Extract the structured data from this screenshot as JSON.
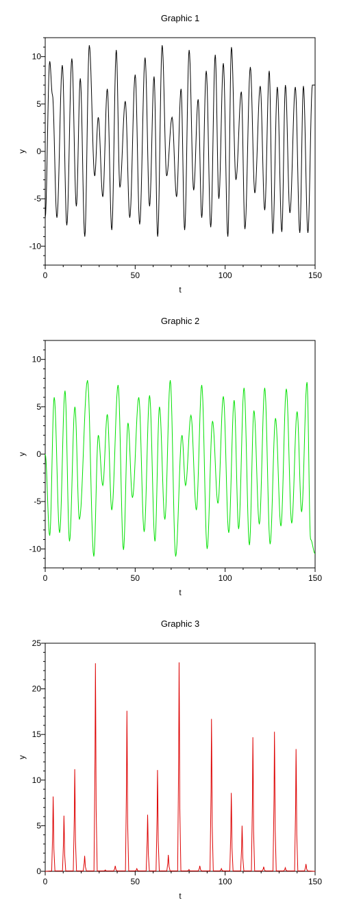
{
  "chart_data": [
    {
      "type": "line",
      "title": "Graphic 1",
      "xlabel": "t",
      "ylabel": "y",
      "xlim": [
        0,
        150
      ],
      "ylim": [
        -12,
        12
      ],
      "xticks": [
        0,
        50,
        100,
        150
      ],
      "yticks": [
        -10,
        -5,
        0,
        5,
        10
      ],
      "color": "#000000",
      "series": [
        {
          "x": [
            0,
            2.5,
            4,
            6.5,
            9.5,
            12,
            14.8,
            17.3,
            19.5,
            22,
            24.5,
            27.5,
            29.5,
            32,
            34.5,
            37,
            39.5,
            41.5,
            44.5,
            47,
            50,
            52.5,
            55.5,
            58,
            60.5,
            62.5,
            65,
            67.5,
            70.5,
            73,
            75.5,
            77.5,
            80,
            82.5,
            85,
            87,
            89.5,
            92,
            94.5,
            96.5,
            99,
            101.5,
            103.5,
            106,
            109,
            111,
            114,
            116.5,
            119.5,
            122,
            124.5,
            126.5,
            129,
            131.5,
            133.5,
            136,
            139,
            141.5,
            143.5,
            146,
            148.5,
            150
          ],
          "y": [
            -7,
            9.5,
            6,
            -7,
            9.1,
            -7.8,
            9.8,
            -5.8,
            7.7,
            -9,
            11.2,
            -2.6,
            3.6,
            -4.8,
            6.6,
            -8.3,
            10.7,
            -3.8,
            5.3,
            -7,
            8.1,
            -7.7,
            9.9,
            -5.8,
            7.9,
            -9,
            11.2,
            -2.6,
            3.6,
            -4.8,
            6.6,
            -8.3,
            10.7,
            -4.1,
            5.5,
            -7,
            8.5,
            -8,
            10.2,
            -5,
            9.3,
            -9,
            11,
            -3,
            6.3,
            -8.2,
            8.9,
            -4.4,
            6.9,
            -6.2,
            8.5,
            -8.7,
            6.8,
            -8.5,
            7,
            -6.5,
            6.8,
            -8.6,
            6.9,
            -8.6,
            7,
            7
          ]
        }
      ]
    },
    {
      "type": "line",
      "title": "Graphic 2",
      "xlabel": "t",
      "ylabel": "y",
      "xlim": [
        0,
        150
      ],
      "ylim": [
        -12,
        12
      ],
      "xticks": [
        0,
        50,
        100,
        150
      ],
      "yticks": [
        -10,
        -5,
        0,
        5,
        10
      ],
      "color": "#00e000",
      "series": [
        {
          "x": [
            0,
            2.5,
            5,
            8,
            11,
            13.5,
            16.5,
            19,
            23.5,
            27,
            29.5,
            32,
            34.5,
            37,
            40.5,
            43.5,
            46,
            48.5,
            52,
            55,
            58,
            61,
            63.5,
            66.5,
            69.5,
            72.5,
            76,
            78,
            81,
            84,
            87,
            90,
            93,
            96,
            99,
            102,
            105,
            107.5,
            110.5,
            113.5,
            116,
            119,
            122,
            125,
            128,
            131,
            134,
            137,
            140,
            142.5,
            145.5,
            147.5,
            150
          ],
          "y": [
            0,
            -8.6,
            6,
            -8.3,
            6.7,
            -9.2,
            5,
            -6.9,
            7.8,
            -10.8,
            2,
            -3.3,
            4.2,
            -5.9,
            7.3,
            -10.1,
            3.3,
            -4.6,
            6,
            -8.2,
            6.2,
            -9.2,
            5,
            -6.9,
            7.8,
            -10.8,
            2,
            -3.3,
            4.1,
            -5.9,
            7.3,
            -10,
            3.5,
            -5.2,
            6.1,
            -8.3,
            5.7,
            -7.9,
            7,
            -9.6,
            4.6,
            -7.4,
            7,
            -9.5,
            3.8,
            -7.6,
            6.9,
            -7.3,
            4.5,
            -6.1,
            7.6,
            -9,
            -10.5
          ]
        }
      ]
    },
    {
      "type": "line",
      "title": "Graphic 3",
      "xlabel": "t",
      "ylabel": "y",
      "xlim": [
        0,
        150
      ],
      "ylim": [
        0,
        25
      ],
      "xticks": [
        0,
        50,
        100,
        150
      ],
      "yticks": [
        0,
        5,
        10,
        15,
        20,
        25
      ],
      "color": "#dd0000",
      "series": [
        {
          "peaks_x": [
            4.5,
            10.5,
            16.5,
            22,
            28,
            33.5,
            39,
            45.5,
            51,
            57,
            62.5,
            68.5,
            74.5,
            80,
            86,
            92.5,
            98,
            103.5,
            109.5,
            115.5,
            121.5,
            127.5,
            133.5,
            139.5,
            145
          ],
          "peaks_y": [
            8.2,
            6.1,
            11.2,
            1.7,
            22.8,
            0.15,
            0.6,
            17.6,
            0.3,
            6.2,
            11.1,
            1.8,
            22.9,
            0.2,
            0.6,
            16.7,
            0.3,
            8.6,
            5,
            14.7,
            0.5,
            15.3,
            0.4,
            13.4,
            0.8
          ]
        }
      ]
    }
  ]
}
